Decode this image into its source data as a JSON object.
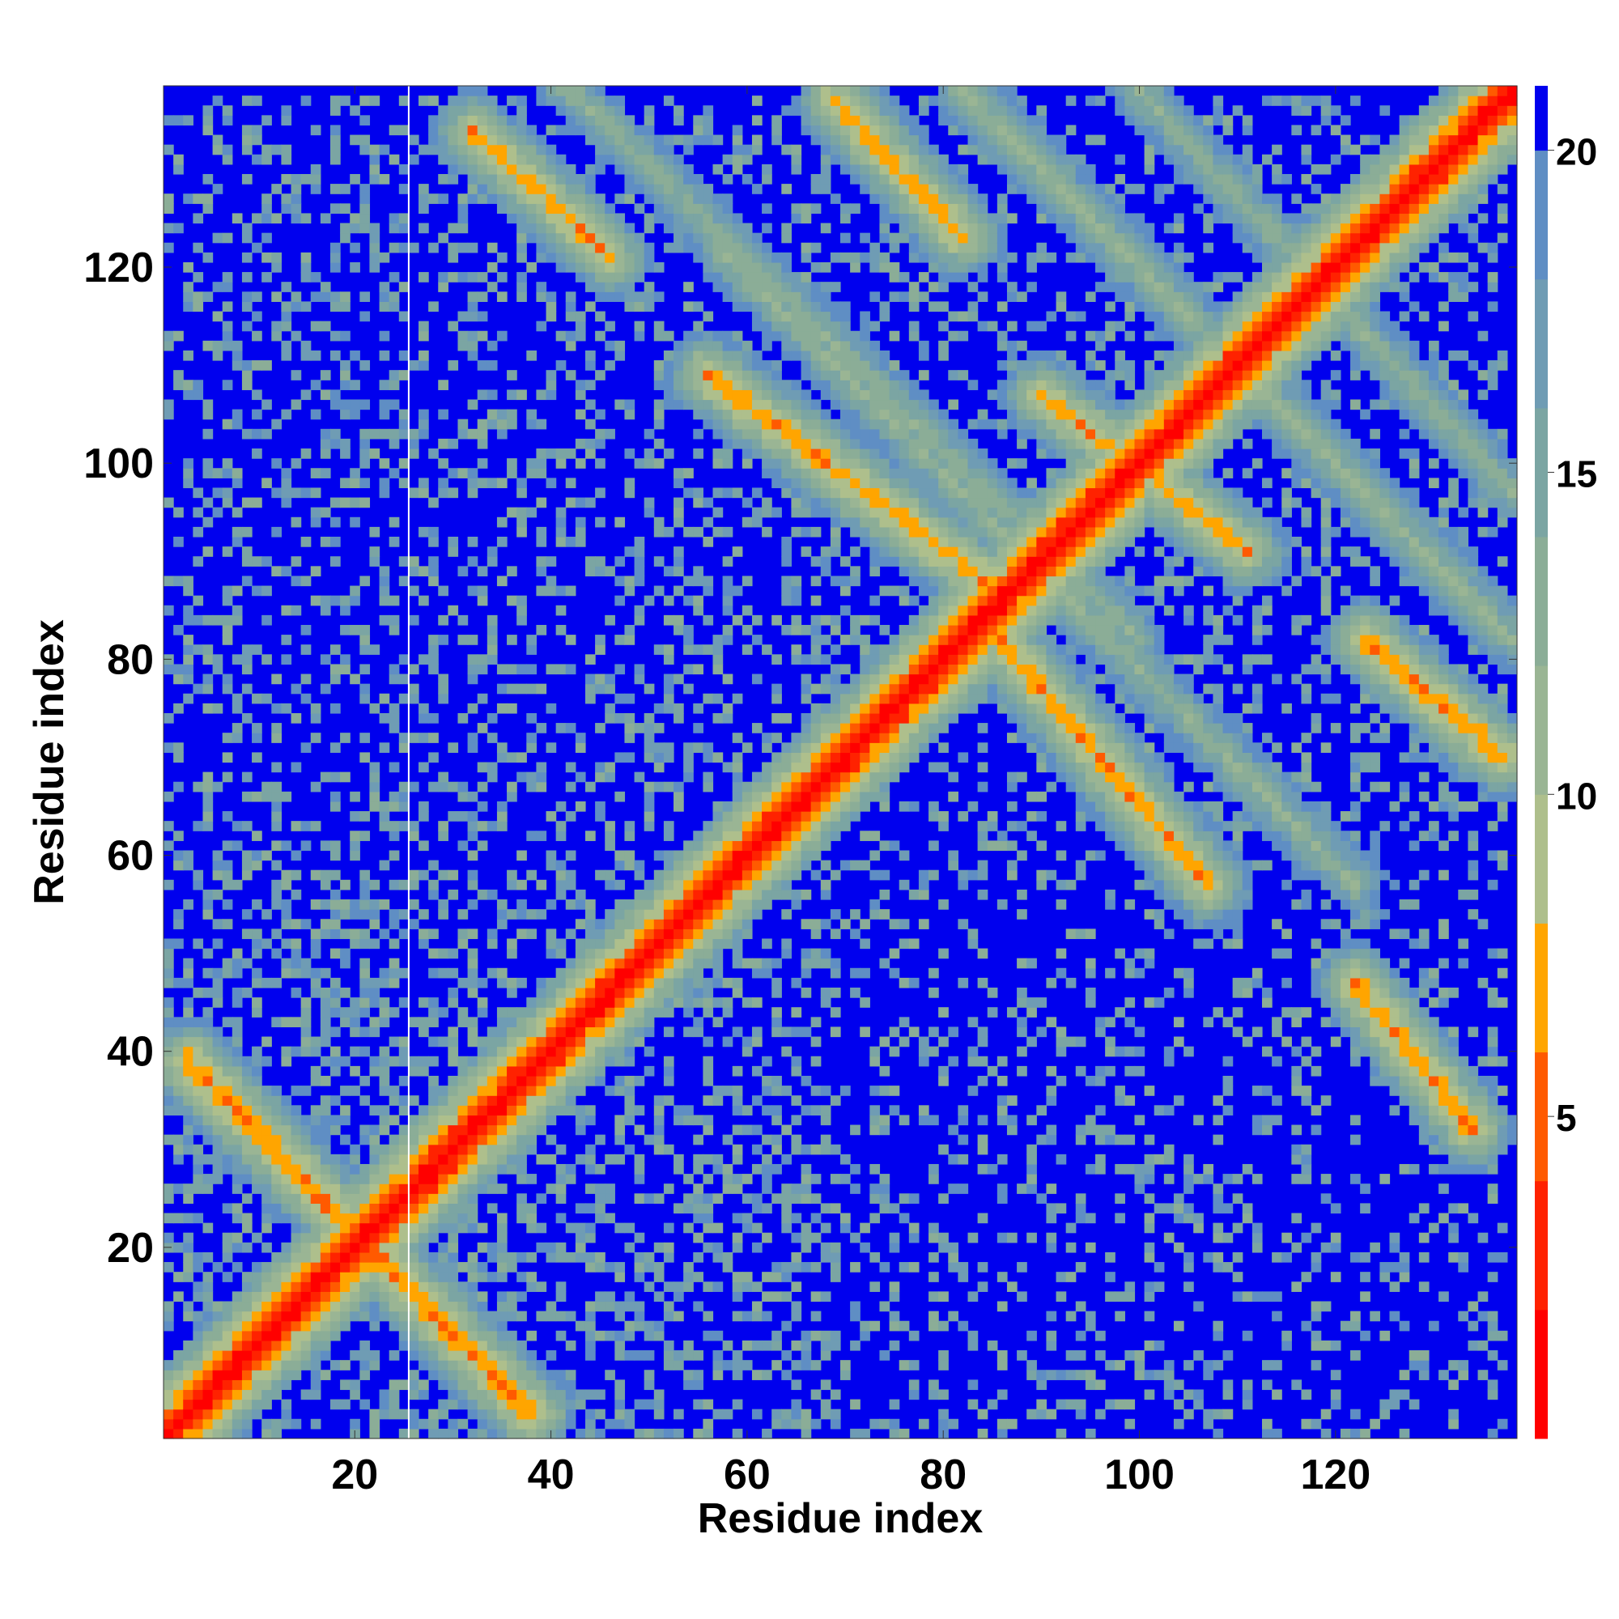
{
  "chart_data": {
    "type": "heatmap",
    "title": "",
    "xlabel": "Residue index",
    "ylabel": "Residue index",
    "x_range": [
      1,
      138
    ],
    "y_range": [
      1,
      138
    ],
    "x_ticks": [
      20,
      40,
      60,
      80,
      100,
      120
    ],
    "y_ticks": [
      20,
      40,
      60,
      80,
      100,
      120
    ],
    "x_tick_labels": [
      "20",
      "40",
      "60",
      "80",
      "100",
      "120"
    ],
    "y_tick_labels": [
      "20",
      "40",
      "60",
      "80",
      "100",
      "120"
    ],
    "colorbar": {
      "range": [
        0,
        21
      ],
      "ticks": [
        5,
        10,
        15,
        20
      ],
      "tick_labels": [
        "5",
        "10",
        "15",
        "20"
      ],
      "levels": [
        {
          "min": 0,
          "max": 2,
          "color": "#ff0000"
        },
        {
          "min": 2,
          "max": 4,
          "color": "#ff2200"
        },
        {
          "min": 4,
          "max": 6,
          "color": "#ff5a00"
        },
        {
          "min": 6,
          "max": 8,
          "color": "#ffa500"
        },
        {
          "min": 8,
          "max": 10,
          "color": "#aebf8c"
        },
        {
          "min": 10,
          "max": 12,
          "color": "#9ab594"
        },
        {
          "min": 12,
          "max": 14,
          "color": "#8bad97"
        },
        {
          "min": 14,
          "max": 16,
          "color": "#7ba5a3"
        },
        {
          "min": 16,
          "max": 18,
          "color": "#6f9cb4"
        },
        {
          "min": 18,
          "max": 20,
          "color": "#5f8ec4"
        },
        {
          "min": 20,
          "max": 21,
          "color": "#0000ee"
        }
      ]
    },
    "background_color": "#0000ee",
    "vertical_line_x": 26,
    "contact_bands": [
      {
        "from": [
          1,
          1
        ],
        "to": [
          138,
          138
        ],
        "width": 1.7,
        "peak": 0.6
      },
      {
        "from": [
          3,
          39
        ],
        "to": [
          38,
          3
        ],
        "width": 1.5,
        "peak": 5.5
      },
      {
        "from": [
          32,
          134
        ],
        "to": [
          46,
          121
        ],
        "width": 1.3,
        "peak": 6.5
      },
      {
        "from": [
          69,
          137
        ],
        "to": [
          82,
          123
        ],
        "width": 1.5,
        "peak": 6.5
      },
      {
        "from": [
          56,
          109
        ],
        "to": [
          87,
          86
        ],
        "width": 1.6,
        "peak": 6.0
      },
      {
        "from": [
          84,
          84
        ],
        "to": [
          107,
          57
        ],
        "width": 1.6,
        "peak": 6.0
      },
      {
        "from": [
          122,
          47
        ],
        "to": [
          134,
          32
        ],
        "width": 1.3,
        "peak": 6.0
      },
      {
        "from": [
          123,
          82
        ],
        "to": [
          137,
          70
        ],
        "width": 1.3,
        "peak": 6.0
      },
      {
        "from": [
          90,
          107
        ],
        "to": [
          111,
          91
        ],
        "width": 1.4,
        "peak": 6.5
      },
      {
        "from": [
          82,
          138
        ],
        "to": [
          138,
          82
        ],
        "width": 2.6,
        "peak": 11.5
      },
      {
        "from": [
          57,
          122
        ],
        "to": [
          122,
          57
        ],
        "width": 2.4,
        "peak": 12.0
      },
      {
        "from": [
          40,
          140
        ],
        "to": [
          100,
          82
        ],
        "width": 2.2,
        "peak": 12.5
      },
      {
        "from": [
          100,
          138
        ],
        "to": [
          138,
          97
        ],
        "width": 2.2,
        "peak": 12.5
      },
      {
        "from": [
          30,
          30
        ],
        "to": [
          60,
          60
        ],
        "width": 4.0,
        "peak": 10.5
      },
      {
        "from": [
          60,
          60
        ],
        "to": [
          110,
          110
        ],
        "width": 3.5,
        "peak": 9.5
      }
    ],
    "speckle_regions": [
      {
        "x": [
          1,
          26
        ],
        "y": [
          1,
          60
        ],
        "density": 0.42
      },
      {
        "x": [
          26,
          70
        ],
        "y": [
          1,
          60
        ],
        "density": 0.4
      },
      {
        "x": [
          70,
          138
        ],
        "y": [
          1,
          60
        ],
        "density": 0.22
      },
      {
        "x": [
          1,
          138
        ],
        "y": [
          60,
          138
        ],
        "density": 0.3
      }
    ]
  }
}
